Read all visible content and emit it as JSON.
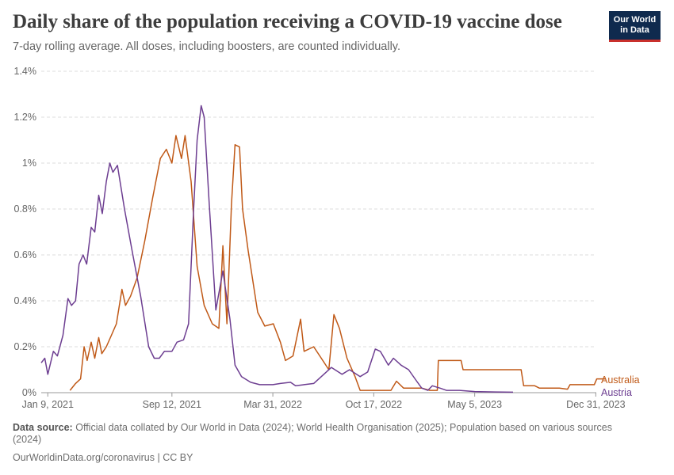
{
  "header": {
    "title": "Daily share of the population receiving a COVID-19 vaccine dose",
    "subtitle": "7-day rolling average. All doses, including boosters, are counted individually.",
    "logo_line1": "Our World",
    "logo_line2": "in Data"
  },
  "footer": {
    "source_label": "Data source:",
    "source_text": "Official data collated by Our World in Data (2024); World Health Organisation (2025); Population based on various sources (2024)",
    "license": "OurWorldinData.org/coronavirus | CC BY"
  },
  "colors": {
    "Australia": "#c05917",
    "Austria": "#6d3e91",
    "grid": "#dddddd",
    "axis": "#999999"
  },
  "chart_data": {
    "type": "line",
    "xlabel": "",
    "ylabel": "",
    "ylim": [
      0,
      1.4
    ],
    "y_unit": "%",
    "y_ticks": [
      "0%",
      "0.2%",
      "0.4%",
      "0.6%",
      "0.8%",
      "1%",
      "1.2%",
      "1.4%"
    ],
    "x_ticks": [
      "2021-01-09",
      "2021-09-12",
      "2022-03-31",
      "2022-10-17",
      "2023-05-05",
      "2023-12-31"
    ],
    "x_tick_labels": [
      "Jan 9, 2021",
      "Sep 12, 2021",
      "Mar 31, 2022",
      "Oct 17, 2022",
      "May 5, 2023",
      "Dec 31, 2023"
    ],
    "xlim": [
      "2020-12-27",
      "2024-01-01"
    ],
    "grid": true,
    "legend": "right-end labels",
    "series": [
      {
        "name": "Australia",
        "points": [
          [
            "2021-02-22",
            0.01
          ],
          [
            "2021-03-05",
            0.04
          ],
          [
            "2021-03-15",
            0.06
          ],
          [
            "2021-03-22",
            0.2
          ],
          [
            "2021-03-28",
            0.14
          ],
          [
            "2021-04-05",
            0.22
          ],
          [
            "2021-04-12",
            0.15
          ],
          [
            "2021-04-20",
            0.24
          ],
          [
            "2021-04-26",
            0.17
          ],
          [
            "2021-05-05",
            0.2
          ],
          [
            "2021-05-15",
            0.25
          ],
          [
            "2021-05-25",
            0.3
          ],
          [
            "2021-06-05",
            0.45
          ],
          [
            "2021-06-12",
            0.38
          ],
          [
            "2021-06-22",
            0.42
          ],
          [
            "2021-07-05",
            0.5
          ],
          [
            "2021-07-20",
            0.66
          ],
          [
            "2021-08-05",
            0.85
          ],
          [
            "2021-08-20",
            1.02
          ],
          [
            "2021-09-01",
            1.06
          ],
          [
            "2021-09-12",
            1.0
          ],
          [
            "2021-09-20",
            1.12
          ],
          [
            "2021-10-01",
            1.02
          ],
          [
            "2021-10-08",
            1.12
          ],
          [
            "2021-10-20",
            0.92
          ],
          [
            "2021-11-01",
            0.55
          ],
          [
            "2021-11-15",
            0.38
          ],
          [
            "2021-12-01",
            0.3
          ],
          [
            "2021-12-14",
            0.28
          ],
          [
            "2021-12-22",
            0.64
          ],
          [
            "2021-12-30",
            0.3
          ],
          [
            "2022-01-08",
            0.82
          ],
          [
            "2022-01-15",
            1.08
          ],
          [
            "2022-01-24",
            1.07
          ],
          [
            "2022-01-30",
            0.8
          ],
          [
            "2022-02-10",
            0.62
          ],
          [
            "2022-03-01",
            0.35
          ],
          [
            "2022-03-15",
            0.29
          ],
          [
            "2022-04-01",
            0.3
          ],
          [
            "2022-04-15",
            0.22
          ],
          [
            "2022-04-25",
            0.14
          ],
          [
            "2022-05-10",
            0.16
          ],
          [
            "2022-05-25",
            0.32
          ],
          [
            "2022-06-01",
            0.18
          ],
          [
            "2022-06-20",
            0.2
          ],
          [
            "2022-07-05",
            0.15
          ],
          [
            "2022-07-20",
            0.1
          ],
          [
            "2022-07-30",
            0.34
          ],
          [
            "2022-08-10",
            0.28
          ],
          [
            "2022-08-25",
            0.15
          ],
          [
            "2022-09-10",
            0.07
          ],
          [
            "2022-09-20",
            0.01
          ],
          [
            "2022-10-20",
            0.01
          ],
          [
            "2022-11-20",
            0.01
          ],
          [
            "2022-12-01",
            0.05
          ],
          [
            "2022-12-15",
            0.02
          ],
          [
            "2023-01-05",
            0.02
          ],
          [
            "2023-01-20",
            0.02
          ],
          [
            "2023-02-05",
            0.01
          ],
          [
            "2023-02-20",
            0.01
          ],
          [
            "2023-02-22",
            0.14
          ],
          [
            "2023-04-08",
            0.14
          ],
          [
            "2023-04-12",
            0.1
          ],
          [
            "2023-08-05",
            0.1
          ],
          [
            "2023-08-10",
            0.03
          ],
          [
            "2023-09-01",
            0.03
          ],
          [
            "2023-09-10",
            0.02
          ],
          [
            "2023-10-20",
            0.02
          ],
          [
            "2023-11-05",
            0.015
          ],
          [
            "2023-11-10",
            0.035
          ],
          [
            "2023-12-28",
            0.035
          ],
          [
            "2024-01-02",
            0.06
          ],
          [
            "2024-01-20",
            0.06
          ]
        ]
      },
      {
        "name": "Austria",
        "points": [
          [
            "2020-12-27",
            0.13
          ],
          [
            "2021-01-03",
            0.15
          ],
          [
            "2021-01-09",
            0.08
          ],
          [
            "2021-01-20",
            0.18
          ],
          [
            "2021-01-28",
            0.16
          ],
          [
            "2021-02-08",
            0.25
          ],
          [
            "2021-02-18",
            0.41
          ],
          [
            "2021-02-25",
            0.38
          ],
          [
            "2021-03-05",
            0.4
          ],
          [
            "2021-03-12",
            0.56
          ],
          [
            "2021-03-20",
            0.6
          ],
          [
            "2021-03-27",
            0.56
          ],
          [
            "2021-04-05",
            0.72
          ],
          [
            "2021-04-12",
            0.7
          ],
          [
            "2021-04-20",
            0.86
          ],
          [
            "2021-04-27",
            0.78
          ],
          [
            "2021-05-05",
            0.92
          ],
          [
            "2021-05-12",
            1.0
          ],
          [
            "2021-05-18",
            0.96
          ],
          [
            "2021-05-27",
            0.99
          ],
          [
            "2021-06-10",
            0.8
          ],
          [
            "2021-06-25",
            0.62
          ],
          [
            "2021-07-12",
            0.42
          ],
          [
            "2021-07-28",
            0.2
          ],
          [
            "2021-08-08",
            0.15
          ],
          [
            "2021-08-18",
            0.15
          ],
          [
            "2021-08-28",
            0.18
          ],
          [
            "2021-09-12",
            0.18
          ],
          [
            "2021-09-22",
            0.22
          ],
          [
            "2021-10-05",
            0.23
          ],
          [
            "2021-10-15",
            0.3
          ],
          [
            "2021-10-25",
            0.8
          ],
          [
            "2021-11-01",
            1.1
          ],
          [
            "2021-11-09",
            1.25
          ],
          [
            "2021-11-15",
            1.2
          ],
          [
            "2021-11-25",
            0.82
          ],
          [
            "2021-12-08",
            0.36
          ],
          [
            "2021-12-22",
            0.53
          ],
          [
            "2022-01-05",
            0.32
          ],
          [
            "2022-01-15",
            0.12
          ],
          [
            "2022-01-28",
            0.07
          ],
          [
            "2022-02-15",
            0.045
          ],
          [
            "2022-03-05",
            0.035
          ],
          [
            "2022-03-31",
            0.035
          ],
          [
            "2022-04-15",
            0.04
          ],
          [
            "2022-05-05",
            0.045
          ],
          [
            "2022-05-15",
            0.03
          ],
          [
            "2022-06-01",
            0.035
          ],
          [
            "2022-06-20",
            0.04
          ],
          [
            "2022-07-10",
            0.08
          ],
          [
            "2022-07-25",
            0.11
          ],
          [
            "2022-08-15",
            0.08
          ],
          [
            "2022-08-30",
            0.1
          ],
          [
            "2022-09-20",
            0.07
          ],
          [
            "2022-10-05",
            0.09
          ],
          [
            "2022-10-20",
            0.19
          ],
          [
            "2022-10-30",
            0.18
          ],
          [
            "2022-11-15",
            0.12
          ],
          [
            "2022-11-25",
            0.15
          ],
          [
            "2022-12-10",
            0.12
          ],
          [
            "2022-12-25",
            0.1
          ],
          [
            "2023-01-10",
            0.05
          ],
          [
            "2023-01-20",
            0.02
          ],
          [
            "2023-02-01",
            0.01
          ],
          [
            "2023-02-10",
            0.03
          ],
          [
            "2023-02-25",
            0.02
          ],
          [
            "2023-03-10",
            0.01
          ],
          [
            "2023-04-05",
            0.01
          ],
          [
            "2023-05-05",
            0.005
          ],
          [
            "2023-06-15",
            0.003
          ],
          [
            "2023-07-20",
            0.002
          ]
        ]
      }
    ]
  }
}
